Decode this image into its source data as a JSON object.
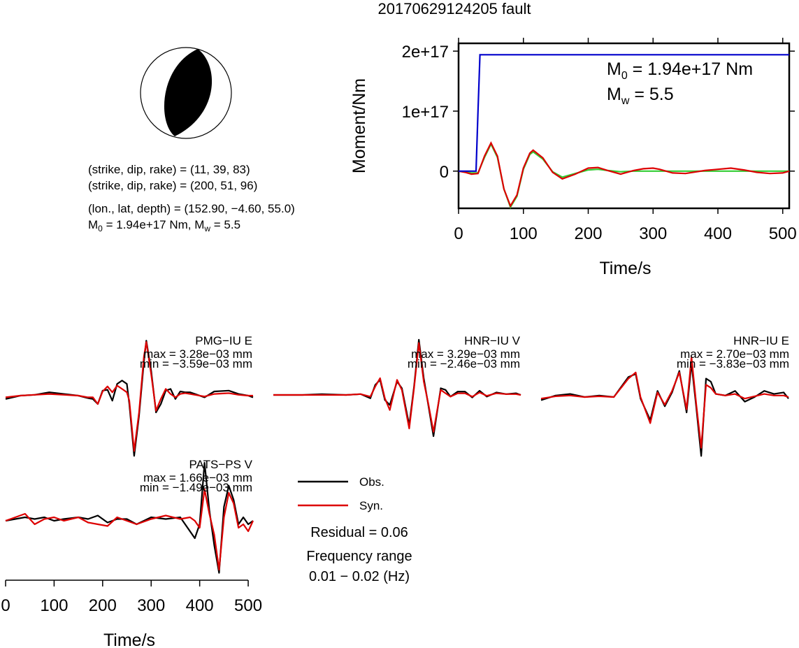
{
  "title": "20170629124205 fault",
  "mechanism": {
    "plane1": "(strike, dip, rake) = (11, 39, 83)",
    "plane2": "(strike, dip, rake) = (200, 51, 96)",
    "location": "(lon., lat, depth) = (152.90, −4.60, 55.0)",
    "m0_text": "M",
    "m0_sub": "0",
    "m0_val": " = 1.94e+17 Nm, M",
    "mw_sub": "w",
    "mw_val": " = 5.5"
  },
  "moment_legend": {
    "m0_main": "M",
    "m0_sub": "0",
    "m0_val": " = 1.94e+17 Nm",
    "mw_main": "M",
    "mw_sub": "w",
    "mw_val": " = 5.5"
  },
  "colors": {
    "moment": "#0000cc",
    "stf_red": "#dd0000",
    "stf_green": "#33cc33",
    "obs": "#000000",
    "syn": "#dd0000"
  },
  "legend": {
    "obs": "Obs.",
    "syn": "Syn.",
    "residual": "Residual = 0.06",
    "freq_title": "Frequency range",
    "freq_value": "0.01 − 0.02 (Hz)"
  },
  "chart_data": [
    {
      "type": "line",
      "xlabel": "Time/s",
      "ylabel": "Moment/Nm",
      "xlim": [
        0,
        510
      ],
      "ylim": [
        -6.2e+16,
        2.13e+17
      ],
      "x_ticks": [
        "0",
        "100",
        "200",
        "300",
        "400",
        "500"
      ],
      "y_ticks": [
        "0",
        "1e+17",
        "2e+17"
      ],
      "series": [
        {
          "x": [
            0,
            27,
            30,
            33,
            510
          ],
          "values": [
            0,
            0,
            1e+17,
            1.94e+17,
            1.94e+17
          ]
        },
        {
          "x": [
            0,
            10,
            20,
            30,
            40,
            50,
            60,
            70,
            80,
            90,
            100,
            110,
            115,
            130,
            145,
            160,
            180,
            200,
            215,
            230,
            250,
            270,
            285,
            300,
            310,
            330,
            350,
            380,
            400,
            420,
            440,
            460,
            480,
            500,
            510
          ],
          "values": [
            0,
            -2000000000000000.0,
            -5000000000000000.0,
            -4000000000000000.0,
            2.5e+16,
            4.7e+16,
            2.5e+16,
            -3e+16,
            -5.8e+16,
            -4e+16,
            5000000000000000.0,
            3e+16,
            3.5e+16,
            2.2e+16,
            -2000000000000000.0,
            -1.3e+16,
            -5000000000000000.0,
            5000000000000000.0,
            6000000000000000.0,
            1000000000000000.0,
            -5000000000000000.0,
            1000000000000000.0,
            4000000000000000.0,
            5000000000000000.0,
            3000000000000000.0,
            -3000000000000000.0,
            -4000000000000000.0,
            1000000000000000.0,
            3000000000000000.0,
            5000000000000000.0,
            2000000000000000.0,
            -2000000000000000.0,
            -4000000000000000.0,
            -3000000000000000.0,
            0
          ]
        },
        {
          "x": [
            0,
            10,
            20,
            30,
            40,
            50,
            60,
            70,
            80,
            90,
            100,
            110,
            115,
            130,
            145,
            160,
            180,
            200,
            215,
            230,
            250,
            270,
            300,
            350,
            400,
            450,
            510
          ],
          "values": [
            0,
            -1000000000000000.0,
            -3000000000000000.0,
            -3000000000000000.0,
            2.3e+16,
            4.5e+16,
            2.3e+16,
            -3e+16,
            -6e+16,
            -4.2e+16,
            3000000000000000.0,
            2.8e+16,
            3.2e+16,
            2e+16,
            -1000000000000000.0,
            -1e+16,
            -4000000000000000.0,
            2000000000000000.0,
            3000000000000000.0,
            1000000000000000.0,
            -1000000000000000.0,
            0,
            0,
            0,
            0,
            0,
            0
          ]
        }
      ]
    },
    {
      "type": "line",
      "label": "PMG−IU E",
      "max": "max = 3.28e−03 mm",
      "min": "min = −3.59e−03 mm",
      "xlim": [
        0,
        510
      ],
      "series": [
        {
          "name": "Obs.",
          "x": [
            0,
            30,
            60,
            90,
            120,
            150,
            170,
            180,
            190,
            200,
            210,
            220,
            230,
            240,
            250,
            255,
            265,
            275,
            285,
            290,
            300,
            310,
            320,
            330,
            340,
            350,
            360,
            370,
            380,
            390,
            410,
            430,
            460,
            480,
            500,
            510
          ],
          "values": [
            -0.2,
            0,
            0.05,
            0.2,
            0.1,
            0,
            -0.15,
            -0.2,
            -0.5,
            0.3,
            0.35,
            -0.3,
            0.7,
            0.9,
            0.7,
            -0.5,
            -3.59,
            -1.2,
            2.0,
            3.28,
            1.5,
            -1.0,
            -0.5,
            0.3,
            0.4,
            -0.2,
            0.25,
            0.2,
            0.2,
            0.1,
            -0.1,
            0.25,
            0.3,
            0.1,
            0.0,
            -0.1
          ]
        },
        {
          "name": "Syn.",
          "x": [
            0,
            30,
            60,
            90,
            120,
            150,
            170,
            180,
            190,
            200,
            210,
            220,
            230,
            240,
            250,
            255,
            265,
            275,
            285,
            290,
            300,
            310,
            320,
            330,
            340,
            350,
            360,
            370,
            380,
            390,
            410,
            430,
            460,
            480,
            500,
            510
          ],
          "values": [
            -0.1,
            0,
            0.05,
            0.1,
            0.05,
            0,
            -0.1,
            -0.1,
            -0.5,
            0.25,
            0.55,
            0.2,
            0.6,
            0.4,
            0.2,
            -0.3,
            -3.3,
            -1.0,
            2.3,
            3.2,
            1.3,
            -0.9,
            -0.2,
            0.4,
            0.1,
            -0.1,
            0.1,
            0.15,
            0.1,
            0.05,
            -0.05,
            0.1,
            0.15,
            0.05,
            0.0,
            0.0
          ]
        }
      ]
    },
    {
      "type": "line",
      "label": "HNR−IU V",
      "max": "max = 3.29e−03 mm",
      "min": "min = −2.46e−03 mm",
      "xlim": [
        0,
        510
      ],
      "series": [
        {
          "name": "Obs.",
          "x": [
            0,
            60,
            100,
            150,
            180,
            200,
            210,
            220,
            230,
            240,
            255,
            265,
            280,
            290,
            300,
            310,
            320,
            330,
            345,
            355,
            365,
            380,
            395,
            410,
            425,
            440,
            460,
            480,
            500,
            510
          ],
          "values": [
            0.0,
            0.0,
            0.05,
            0.0,
            0.05,
            -0.2,
            0.6,
            0.9,
            -0.3,
            -0.6,
            0.8,
            0.4,
            -1.8,
            0.5,
            3.29,
            1.0,
            -0.7,
            -2.46,
            0.4,
            0.3,
            -0.1,
            0.2,
            0.2,
            -0.15,
            0.25,
            -0.1,
            0.15,
            0.05,
            0.1,
            0.0
          ]
        },
        {
          "name": "Syn.",
          "x": [
            0,
            60,
            100,
            150,
            180,
            200,
            210,
            220,
            230,
            240,
            255,
            265,
            280,
            290,
            300,
            310,
            320,
            330,
            345,
            355,
            365,
            380,
            395,
            410,
            425,
            440,
            460,
            480,
            500,
            510
          ],
          "values": [
            0.0,
            0.0,
            0.0,
            0.0,
            0.05,
            -0.1,
            0.5,
            1.0,
            -0.2,
            -0.9,
            0.9,
            0.3,
            -2.0,
            0.4,
            3.1,
            0.8,
            -0.6,
            -2.2,
            0.3,
            0.1,
            -0.1,
            0.1,
            0.1,
            -0.1,
            0.15,
            -0.05,
            0.1,
            0.05,
            0.05,
            0.0
          ]
        }
      ]
    },
    {
      "type": "line",
      "label": "HNR−IU E",
      "max": "max = 2.70e−03 mm",
      "min": "min = −3.83e−03 mm",
      "xlim": [
        0,
        510
      ],
      "series": [
        {
          "name": "Obs.",
          "x": [
            0,
            30,
            60,
            90,
            120,
            150,
            180,
            195,
            205,
            225,
            240,
            255,
            270,
            285,
            300,
            310,
            320,
            330,
            340,
            350,
            360,
            380,
            400,
            420,
            440,
            460,
            480,
            500,
            510
          ],
          "values": [
            -0.2,
            0.1,
            0.2,
            0.0,
            0.1,
            0.0,
            1.3,
            1.5,
            -0.1,
            -1.5,
            0.4,
            -0.6,
            0.3,
            1.7,
            -1.0,
            2.2,
            -0.7,
            -3.83,
            1.2,
            1.0,
            0.2,
            0.1,
            0.4,
            -0.3,
            0.0,
            0.4,
            0.2,
            0.3,
            -0.1
          ]
        },
        {
          "name": "Syn.",
          "x": [
            0,
            30,
            60,
            90,
            120,
            150,
            180,
            195,
            205,
            225,
            240,
            255,
            270,
            285,
            300,
            310,
            320,
            330,
            340,
            350,
            360,
            380,
            400,
            420,
            440,
            460,
            480,
            500,
            510
          ],
          "values": [
            -0.1,
            0.05,
            0.1,
            0.0,
            0.05,
            0.0,
            1.2,
            1.6,
            0.0,
            -1.7,
            0.3,
            -0.5,
            0.4,
            1.6,
            -0.8,
            2.6,
            -0.5,
            -3.3,
            0.8,
            0.6,
            0.2,
            0.1,
            0.2,
            -0.1,
            0.05,
            0.2,
            0.1,
            0.1,
            0.0
          ]
        }
      ]
    },
    {
      "type": "line",
      "label": "PATS−PS V",
      "max": "max = 1.66e−03 mm",
      "min": "min = −1.49e−03 mm",
      "xlabel": "Time/s",
      "x_ticks": [
        "0",
        "100",
        "200",
        "300",
        "400",
        "500"
      ],
      "xlim": [
        0,
        510
      ],
      "series": [
        {
          "name": "Obs.",
          "x": [
            0,
            20,
            40,
            60,
            80,
            100,
            120,
            150,
            170,
            190,
            210,
            230,
            250,
            270,
            300,
            330,
            360,
            380,
            390,
            400,
            410,
            420,
            430,
            440,
            450,
            460,
            470,
            480,
            490,
            500,
            510
          ],
          "values": [
            0.0,
            0.05,
            0.1,
            0.05,
            0.1,
            0.0,
            0.05,
            0.1,
            0.05,
            0.15,
            -0.05,
            0.05,
            0.05,
            -0.1,
            0.1,
            0.05,
            0.1,
            -0.3,
            -0.5,
            -0.1,
            1.66,
            0.3,
            -0.7,
            -1.49,
            0.4,
            1.0,
            0.6,
            -0.1,
            0.1,
            -0.1,
            0.0
          ]
        },
        {
          "name": "Syn.",
          "x": [
            0,
            20,
            40,
            60,
            80,
            100,
            120,
            150,
            170,
            190,
            210,
            230,
            250,
            270,
            300,
            330,
            360,
            380,
            390,
            400,
            410,
            420,
            430,
            440,
            450,
            460,
            470,
            480,
            490,
            500,
            510
          ],
          "values": [
            0.0,
            0.1,
            0.2,
            -0.1,
            0.05,
            0.1,
            0.0,
            0.1,
            -0.05,
            -0.1,
            -0.15,
            0.1,
            0.0,
            -0.1,
            0.05,
            0.15,
            0.05,
            0.1,
            0.0,
            -0.2,
            0.9,
            0.2,
            -0.4,
            -1.4,
            0.1,
            0.8,
            0.5,
            -0.2,
            -0.1,
            -0.3,
            0.0
          ]
        }
      ]
    }
  ]
}
